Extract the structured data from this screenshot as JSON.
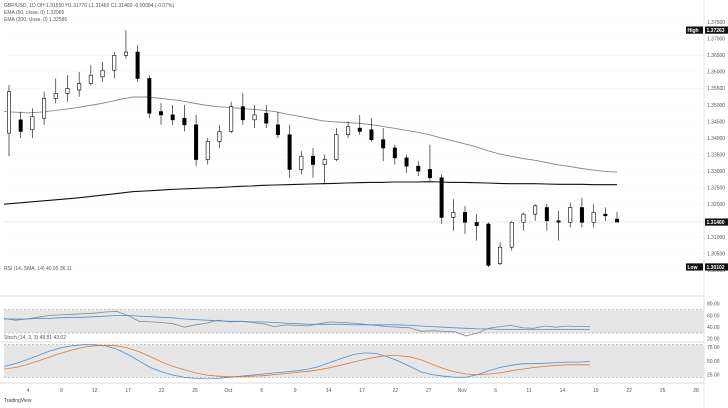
{
  "header": {
    "line1": "GBP/USD, 1D OH:1.31550 H1.31770 L1.31460 C1.31460 -0.00084 (-0.07%)",
    "line2": "EMA (50, close, 0) 1.32965",
    "line3": "EMA (200, close, 0) 1.32586",
    "rsi_label": "RSI (14, SMA, 14) 40.95 36.11",
    "stoch_label": "Stoch (14, 3, 3) 48.81 43.02"
  },
  "brand": "TradingView",
  "markers": {
    "high_label": "High",
    "high_value": "1.37263",
    "last_value": "1.31460",
    "low_label": "Low",
    "low_value": "1.30102"
  },
  "colors": {
    "bull_candle": "#ffffff",
    "bear_candle": "#000000",
    "ema50": "#888888",
    "ema200": "#111111",
    "rsi_line": "#8a8a8a",
    "rsi_ma": "#4a90d9",
    "stoch_k": "#4a90d9",
    "stoch_d": "#e07a2e",
    "panel_band": "#e6e6e6"
  },
  "chart_data": [
    {
      "type": "candlestick",
      "title": "GBP/USD, 1D",
      "ylim": [
        1.2995,
        1.3775
      ],
      "y_ticks": [
        "1.37500",
        "1.37000",
        "1.36500",
        "1.36000",
        "1.35500",
        "1.35000",
        "1.34500",
        "1.34000",
        "1.33500",
        "1.33000",
        "1.32500",
        "1.32000",
        "1.31500",
        "1.31000",
        "1.30500",
        "1.30000"
      ],
      "x_ticks": [
        "4",
        "9",
        "12",
        "17",
        "22",
        "25",
        "Oct",
        "6",
        "9",
        "14",
        "17",
        "22",
        "27",
        "Nov",
        "6",
        "11",
        "14",
        "19",
        "22",
        "25",
        "28"
      ],
      "candles": [
        {
          "o": 1.3415,
          "h": 1.356,
          "l": 1.3345,
          "c": 1.354
        },
        {
          "o": 1.3455,
          "h": 1.348,
          "l": 1.34,
          "c": 1.342
        },
        {
          "o": 1.3425,
          "h": 1.349,
          "l": 1.34,
          "c": 1.3465
        },
        {
          "o": 1.346,
          "h": 1.354,
          "l": 1.344,
          "c": 1.352
        },
        {
          "o": 1.352,
          "h": 1.358,
          "l": 1.3505,
          "c": 1.3535
        },
        {
          "o": 1.3535,
          "h": 1.359,
          "l": 1.351,
          "c": 1.355
        },
        {
          "o": 1.3545,
          "h": 1.36,
          "l": 1.3525,
          "c": 1.3565
        },
        {
          "o": 1.3565,
          "h": 1.362,
          "l": 1.356,
          "c": 1.359
        },
        {
          "o": 1.3585,
          "h": 1.363,
          "l": 1.357,
          "c": 1.3605
        },
        {
          "o": 1.3605,
          "h": 1.366,
          "l": 1.358,
          "c": 1.365
        },
        {
          "o": 1.365,
          "h": 1.3726,
          "l": 1.364,
          "c": 1.366
        },
        {
          "o": 1.366,
          "h": 1.368,
          "l": 1.357,
          "c": 1.358
        },
        {
          "o": 1.358,
          "h": 1.359,
          "l": 1.346,
          "c": 1.3475
        },
        {
          "o": 1.348,
          "h": 1.3505,
          "l": 1.344,
          "c": 1.347
        },
        {
          "o": 1.347,
          "h": 1.35,
          "l": 1.344,
          "c": 1.3455
        },
        {
          "o": 1.346,
          "h": 1.35,
          "l": 1.342,
          "c": 1.344
        },
        {
          "o": 1.344,
          "h": 1.347,
          "l": 1.3315,
          "c": 1.3335
        },
        {
          "o": 1.3335,
          "h": 1.34,
          "l": 1.332,
          "c": 1.339
        },
        {
          "o": 1.339,
          "h": 1.344,
          "l": 1.337,
          "c": 1.342
        },
        {
          "o": 1.342,
          "h": 1.351,
          "l": 1.3415,
          "c": 1.3495
        },
        {
          "o": 1.3495,
          "h": 1.3535,
          "l": 1.344,
          "c": 1.3455
        },
        {
          "o": 1.3455,
          "h": 1.35,
          "l": 1.343,
          "c": 1.347
        },
        {
          "o": 1.3475,
          "h": 1.35,
          "l": 1.343,
          "c": 1.3445
        },
        {
          "o": 1.344,
          "h": 1.348,
          "l": 1.34,
          "c": 1.341
        },
        {
          "o": 1.341,
          "h": 1.344,
          "l": 1.328,
          "c": 1.3305
        },
        {
          "o": 1.3305,
          "h": 1.336,
          "l": 1.329,
          "c": 1.3345
        },
        {
          "o": 1.3345,
          "h": 1.337,
          "l": 1.328,
          "c": 1.332
        },
        {
          "o": 1.332,
          "h": 1.335,
          "l": 1.326,
          "c": 1.3335
        },
        {
          "o": 1.3335,
          "h": 1.343,
          "l": 1.333,
          "c": 1.341
        },
        {
          "o": 1.341,
          "h": 1.345,
          "l": 1.34,
          "c": 1.3435
        },
        {
          "o": 1.343,
          "h": 1.347,
          "l": 1.341,
          "c": 1.342
        },
        {
          "o": 1.3425,
          "h": 1.346,
          "l": 1.339,
          "c": 1.3395
        },
        {
          "o": 1.3395,
          "h": 1.343,
          "l": 1.333,
          "c": 1.337
        },
        {
          "o": 1.337,
          "h": 1.338,
          "l": 1.332,
          "c": 1.334
        },
        {
          "o": 1.334,
          "h": 1.335,
          "l": 1.3295,
          "c": 1.3315
        },
        {
          "o": 1.3315,
          "h": 1.333,
          "l": 1.3285,
          "c": 1.33
        },
        {
          "o": 1.3305,
          "h": 1.338,
          "l": 1.327,
          "c": 1.328
        },
        {
          "o": 1.328,
          "h": 1.329,
          "l": 1.314,
          "c": 1.316
        },
        {
          "o": 1.316,
          "h": 1.3215,
          "l": 1.312,
          "c": 1.3175
        },
        {
          "o": 1.3175,
          "h": 1.3195,
          "l": 1.311,
          "c": 1.3145
        },
        {
          "o": 1.3145,
          "h": 1.317,
          "l": 1.309,
          "c": 1.3135
        },
        {
          "o": 1.314,
          "h": 1.3145,
          "l": 1.301,
          "c": 1.3015
        },
        {
          "o": 1.302,
          "h": 1.3085,
          "l": 1.3015,
          "c": 1.307
        },
        {
          "o": 1.307,
          "h": 1.315,
          "l": 1.306,
          "c": 1.3145
        },
        {
          "o": 1.3145,
          "h": 1.3175,
          "l": 1.312,
          "c": 1.317
        },
        {
          "o": 1.317,
          "h": 1.32,
          "l": 1.315,
          "c": 1.3195
        },
        {
          "o": 1.319,
          "h": 1.32,
          "l": 1.312,
          "c": 1.315
        },
        {
          "o": 1.315,
          "h": 1.318,
          "l": 1.309,
          "c": 1.3145
        },
        {
          "o": 1.3145,
          "h": 1.3205,
          "l": 1.313,
          "c": 1.319
        },
        {
          "o": 1.319,
          "h": 1.322,
          "l": 1.313,
          "c": 1.3145
        },
        {
          "o": 1.3145,
          "h": 1.32,
          "l": 1.313,
          "c": 1.3175
        },
        {
          "o": 1.317,
          "h": 1.319,
          "l": 1.315,
          "c": 1.3165
        },
        {
          "o": 1.3155,
          "h": 1.3177,
          "l": 1.3146,
          "c": 1.3146
        }
      ],
      "series": [
        {
          "name": "EMA (50, close, 0)",
          "values": [
            1.348,
            1.3478,
            1.3476,
            1.3478,
            1.3482,
            1.3486,
            1.3491,
            1.3497,
            1.3503,
            1.351,
            1.3518,
            1.3524,
            1.3524,
            1.3521,
            1.3517,
            1.3513,
            1.3506,
            1.35,
            1.3495,
            1.3493,
            1.349,
            1.3487,
            1.3484,
            1.348,
            1.3472,
            1.3466,
            1.3459,
            1.3452,
            1.3449,
            1.3447,
            1.3445,
            1.3441,
            1.3436,
            1.343,
            1.3424,
            1.3418,
            1.3411,
            1.3401,
            1.3392,
            1.3383,
            1.3374,
            1.3362,
            1.3352,
            1.3345,
            1.3338,
            1.3333,
            1.3326,
            1.3319,
            1.3314,
            1.3308,
            1.3303,
            1.3299,
            1.3297
          ]
        },
        {
          "name": "EMA (200, close, 0)",
          "values": [
            1.32,
            1.3203,
            1.3206,
            1.3209,
            1.3212,
            1.3215,
            1.3218,
            1.3222,
            1.3226,
            1.323,
            1.3234,
            1.3238,
            1.324,
            1.3242,
            1.3244,
            1.3246,
            1.3247,
            1.3249,
            1.325,
            1.3252,
            1.3254,
            1.3255,
            1.3257,
            1.3258,
            1.3259,
            1.326,
            1.3261,
            1.3262,
            1.3263,
            1.3264,
            1.3265,
            1.3266,
            1.3266,
            1.3267,
            1.3267,
            1.3267,
            1.3268,
            1.3267,
            1.3266,
            1.3266,
            1.3265,
            1.3264,
            1.3263,
            1.3262,
            1.3262,
            1.3262,
            1.3261,
            1.326,
            1.326,
            1.326,
            1.3259,
            1.3259,
            1.3259
          ]
        }
      ]
    },
    {
      "type": "line",
      "title": "RSI (14, SMA, 14)",
      "ylim": [
        18,
        90
      ],
      "y_ticks": [
        "80.00",
        "60.00",
        "40.00",
        "20.00"
      ],
      "band": [
        30,
        70
      ],
      "series": [
        {
          "name": "RSI",
          "values": [
            55,
            52,
            54,
            57,
            60,
            61,
            62,
            63,
            64,
            66,
            67,
            60,
            50,
            49,
            48,
            46,
            40,
            44,
            47,
            52,
            49,
            50,
            48,
            46,
            41,
            44,
            43,
            42,
            46,
            49,
            48,
            47,
            45,
            43,
            41,
            40,
            39,
            33,
            34,
            33,
            32,
            25,
            30,
            38,
            41,
            43,
            39,
            38,
            42,
            40,
            42,
            41,
            41
          ]
        },
        {
          "name": "RSI-based MA",
          "values": [
            54,
            54,
            54,
            55,
            55,
            56,
            57,
            57,
            58,
            59,
            60,
            60,
            59,
            58,
            57,
            56,
            54,
            53,
            52,
            51,
            50,
            50,
            49,
            49,
            48,
            47,
            46,
            45,
            45,
            45,
            45,
            44,
            44,
            44,
            44,
            44,
            43,
            42,
            41,
            40,
            39,
            38,
            37,
            37,
            36,
            36,
            36,
            36,
            36,
            36,
            36,
            36,
            36
          ]
        }
      ]
    },
    {
      "type": "line",
      "title": "Stoch (14, 3, 3)",
      "ylim": [
        15,
        85
      ],
      "y_ticks": [
        "75.00",
        "50.00",
        "25.00"
      ],
      "band": [
        20,
        80
      ],
      "series": [
        {
          "name": "%K",
          "values": [
            40,
            45,
            52,
            60,
            68,
            74,
            78,
            80,
            80,
            78,
            72,
            62,
            50,
            38,
            30,
            24,
            20,
            18,
            17,
            18,
            20,
            22,
            24,
            26,
            28,
            30,
            32,
            35,
            40,
            48,
            55,
            62,
            65,
            64,
            58,
            50,
            40,
            30,
            25,
            22,
            20,
            20,
            25,
            32,
            38,
            42,
            45,
            45,
            46,
            47,
            48,
            48,
            49
          ]
        },
        {
          "name": "%D",
          "values": [
            35,
            38,
            43,
            50,
            57,
            64,
            70,
            75,
            78,
            79,
            78,
            74,
            67,
            58,
            48,
            40,
            34,
            28,
            24,
            22,
            21,
            21,
            22,
            23,
            25,
            27,
            29,
            31,
            34,
            38,
            43,
            48,
            53,
            57,
            60,
            60,
            58,
            52,
            44,
            36,
            30,
            26,
            25,
            26,
            28,
            32,
            35,
            38,
            40,
            42,
            43,
            43,
            43
          ]
        }
      ]
    }
  ]
}
